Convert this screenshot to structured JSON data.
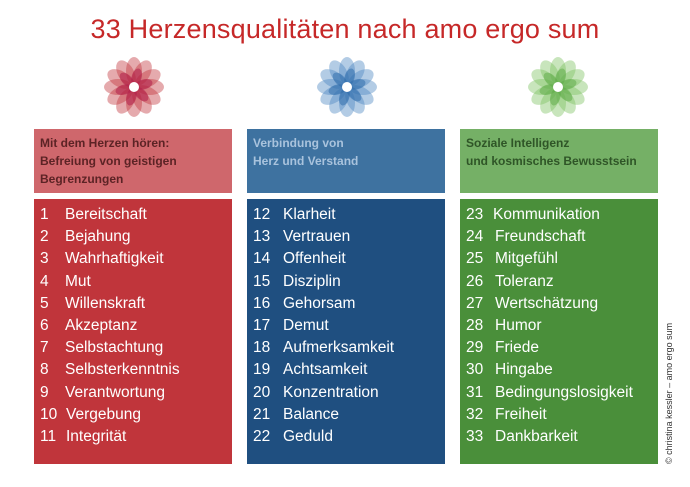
{
  "title": "33 Herzensqualitäten nach amo ergo sum",
  "colors": {
    "title": "#c62828",
    "red": "#c0353b",
    "blue": "#1f4f80",
    "green": "#4a8f3a"
  },
  "columns": [
    {
      "header": [
        "Mit dem Herzen hören:",
        "Befreiung von geistigen",
        "Begrenzungen"
      ],
      "items": [
        {
          "n": "1",
          "label": "Bereitschaft"
        },
        {
          "n": "2",
          "label": "Bejahung"
        },
        {
          "n": "3",
          "label": "Wahrhaftigkeit"
        },
        {
          "n": "4",
          "label": "Mut"
        },
        {
          "n": "5",
          "label": "Willenskraft"
        },
        {
          "n": "6",
          "label": "Akzeptanz"
        },
        {
          "n": "7",
          "label": "Selbstachtung"
        },
        {
          "n": "8",
          "label": "Selbsterkenntnis"
        },
        {
          "n": "9",
          "label": "Verantwortung"
        },
        {
          "n": "10",
          "label": "Vergebung"
        },
        {
          "n": "11",
          "label": "Integrität"
        }
      ]
    },
    {
      "header": [
        "Verbindung von",
        "Herz und Verstand"
      ],
      "items": [
        {
          "n": "12",
          "label": "Klarheit"
        },
        {
          "n": "13",
          "label": "Vertrauen"
        },
        {
          "n": "14",
          "label": "Offenheit"
        },
        {
          "n": "15",
          "label": "Disziplin"
        },
        {
          "n": "16",
          "label": "Gehorsam"
        },
        {
          "n": "17",
          "label": "Demut"
        },
        {
          "n": "18",
          "label": "Aufmerksamkeit"
        },
        {
          "n": "19",
          "label": "Achtsamkeit"
        },
        {
          "n": "20",
          "label": "Konzentration"
        },
        {
          "n": "21",
          "label": "Balance"
        },
        {
          "n": "22",
          "label": "Geduld"
        }
      ]
    },
    {
      "header": [
        "Soziale Intelligenz",
        "und kosmisches Bewusstsein"
      ],
      "items": [
        {
          "n": "23",
          "label": "Kommunikation"
        },
        {
          "n": "24",
          "label": "Freundschaft"
        },
        {
          "n": "25",
          "label": "Mitgefühl"
        },
        {
          "n": "26",
          "label": "Toleranz"
        },
        {
          "n": "27",
          "label": "Wertschätzung"
        },
        {
          "n": "28",
          "label": "Humor"
        },
        {
          "n": "29",
          "label": "Friede"
        },
        {
          "n": "30",
          "label": "Hingabe"
        },
        {
          "n": "31",
          "label": "Bedingungslosigkeit"
        },
        {
          "n": "32",
          "label": "Freiheit"
        },
        {
          "n": "33",
          "label": "Dankbarkeit"
        }
      ]
    }
  ],
  "copyright": "© christina kessler – amo ergo sum",
  "icons": [
    "flower-red-icon",
    "flower-blue-icon",
    "flower-green-icon"
  ]
}
